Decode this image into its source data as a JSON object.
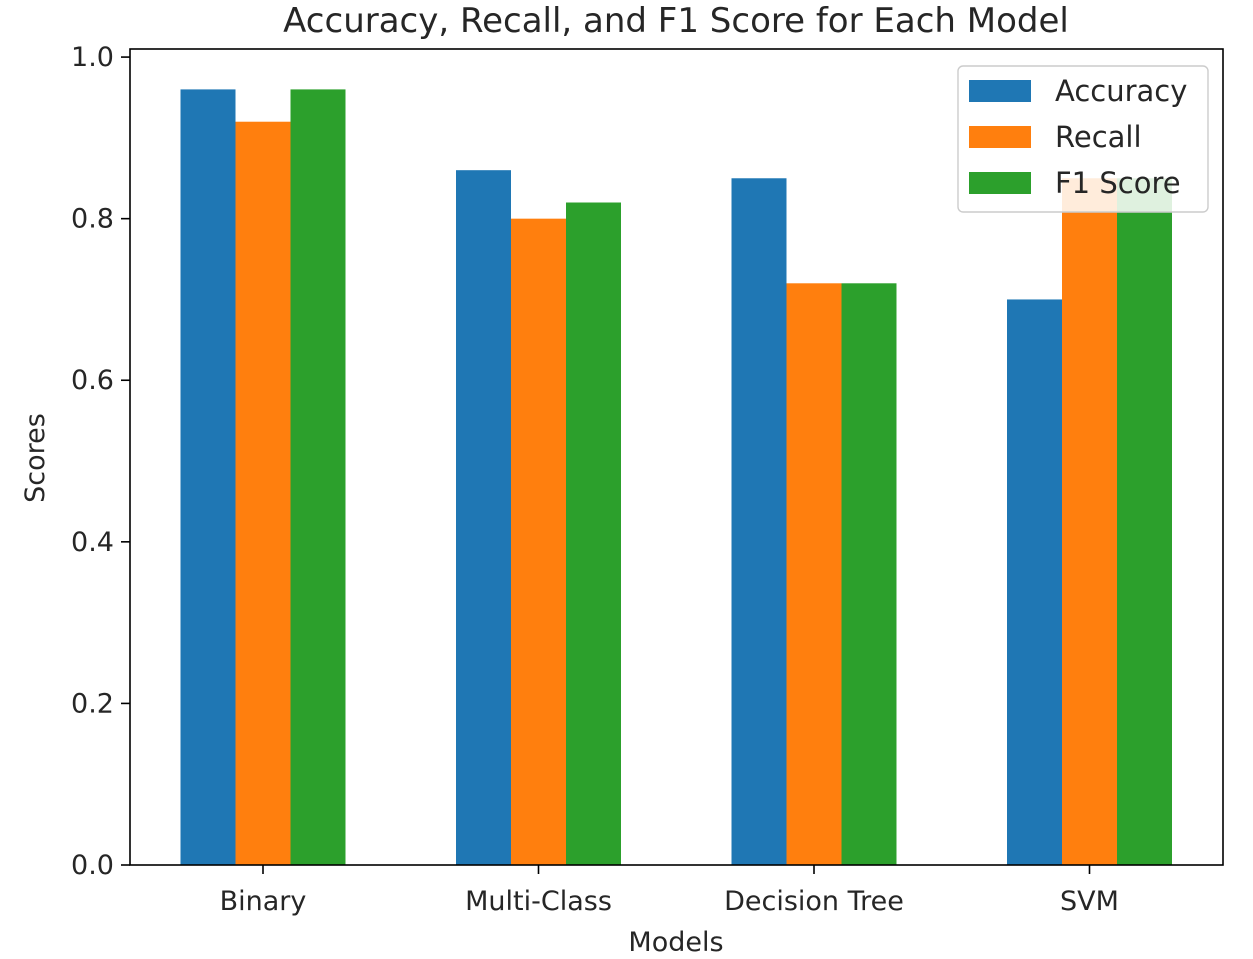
{
  "chart_data": {
    "type": "bar",
    "title": "Accuracy, Recall, and F1 Score for Each Model",
    "xlabel": "Models",
    "ylabel": "Scores",
    "categories": [
      "Binary",
      "Multi-Class",
      "Decision Tree",
      "SVM"
    ],
    "series": [
      {
        "name": "Accuracy",
        "color": "#1f77b4",
        "values": [
          0.96,
          0.86,
          0.85,
          0.7
        ]
      },
      {
        "name": "Recall",
        "color": "#ff7f0e",
        "values": [
          0.92,
          0.8,
          0.72,
          0.85
        ]
      },
      {
        "name": "F1 Score",
        "color": "#2ca02c",
        "values": [
          0.96,
          0.82,
          0.72,
          0.85
        ]
      }
    ],
    "ylim": [
      0,
      1.01
    ],
    "yticks": [
      "0.0",
      "0.2",
      "0.4",
      "0.6",
      "0.8",
      "1.0"
    ],
    "grid": false,
    "legend_position": "top-right"
  }
}
